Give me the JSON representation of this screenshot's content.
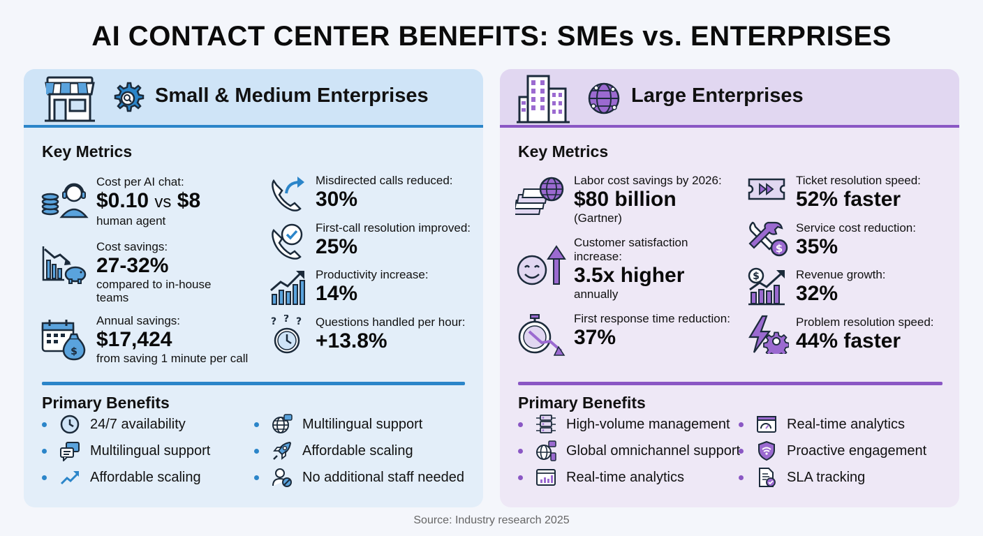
{
  "title": "AI CONTACT CENTER BENEFITS: SMEs vs. ENTERPRISES",
  "colors": {
    "sme_accent": "#2b85c9",
    "ent_accent": "#8a57c4"
  },
  "sme": {
    "heading": "Small & Medium Enterprises",
    "icons": [
      "storefront-icon",
      "gear-search-icon"
    ],
    "key_metrics_title": "Key Metrics",
    "metrics": [
      {
        "label": "Cost per AI chat:",
        "value": "$0.10",
        "vs": "vs",
        "value2": "$8",
        "note": "human agent",
        "icon": "coins-headset-icon"
      },
      {
        "label": "Cost savings:",
        "value": "27-32%",
        "note": "compared to in-house teams",
        "icon": "declining-chart-piggybank-icon"
      },
      {
        "label": "Annual savings:",
        "value": "$17,424",
        "note": "from saving 1 minute per call",
        "icon": "calendar-moneybag-icon"
      },
      {
        "label": "Misdirected calls reduced:",
        "value": "30%",
        "icon": "phone-redirect-icon"
      },
      {
        "label": "First-call resolution improved:",
        "value": "25%",
        "icon": "phone-check-icon"
      },
      {
        "label": "Productivity increase:",
        "value": "14%",
        "icon": "rising-chart-icon"
      },
      {
        "label": "Questions handled per hour:",
        "value": "+13.8%",
        "icon": "clock-questions-icon"
      }
    ],
    "benefits_title": "Primary Benefits",
    "benefits": [
      {
        "text": "24/7 availability",
        "icon": "clock-icon"
      },
      {
        "text": "Multilingual support",
        "icon": "chat-bubbles-icon"
      },
      {
        "text": "Affordable scaling",
        "icon": "trend-up-icon"
      },
      {
        "text": "Multilingual support",
        "icon": "globe-chat-icon"
      },
      {
        "text": "Affordable scaling",
        "icon": "rocket-icon"
      },
      {
        "text": "No additional staff needed",
        "icon": "user-blocked-icon"
      }
    ]
  },
  "ent": {
    "heading": "Large Enterprises",
    "icons": [
      "office-building-icon",
      "globe-network-icon"
    ],
    "key_metrics_title": "Key Metrics",
    "metrics": [
      {
        "label": "Labor cost savings by 2026:",
        "value": "$80 billion",
        "note": "(Gartner)",
        "icon": "money-globe-icon"
      },
      {
        "label": "Customer satisfaction increase:",
        "value": "3.5x higher",
        "note": "annually",
        "icon": "smiley-arrow-up-icon"
      },
      {
        "label": "First response time reduction:",
        "value": "37%",
        "icon": "stopwatch-down-icon"
      },
      {
        "label": "Ticket resolution speed:",
        "value": "52% faster",
        "icon": "ticket-fast-forward-icon"
      },
      {
        "label": "Service cost reduction:",
        "value": "35%",
        "icon": "tools-dollar-icon"
      },
      {
        "label": "Revenue growth:",
        "value": "32%",
        "icon": "dollar-growth-chart-icon"
      },
      {
        "label": "Problem resolution speed:",
        "value": "44% faster",
        "icon": "lightning-gear-icon"
      }
    ],
    "benefits_title": "Primary Benefits",
    "benefits": [
      {
        "text": "High-volume management",
        "icon": "server-network-icon"
      },
      {
        "text": "Global omnichannel support",
        "icon": "globe-devices-icon"
      },
      {
        "text": "Real-time analytics",
        "icon": "dashboard-chart-icon"
      },
      {
        "text": "Real-time analytics",
        "icon": "browser-gauge-icon"
      },
      {
        "text": "Proactive engagement",
        "icon": "shield-wifi-icon"
      },
      {
        "text": "SLA tracking",
        "icon": "document-check-icon"
      }
    ]
  },
  "source": "Source: Industry research 2025"
}
